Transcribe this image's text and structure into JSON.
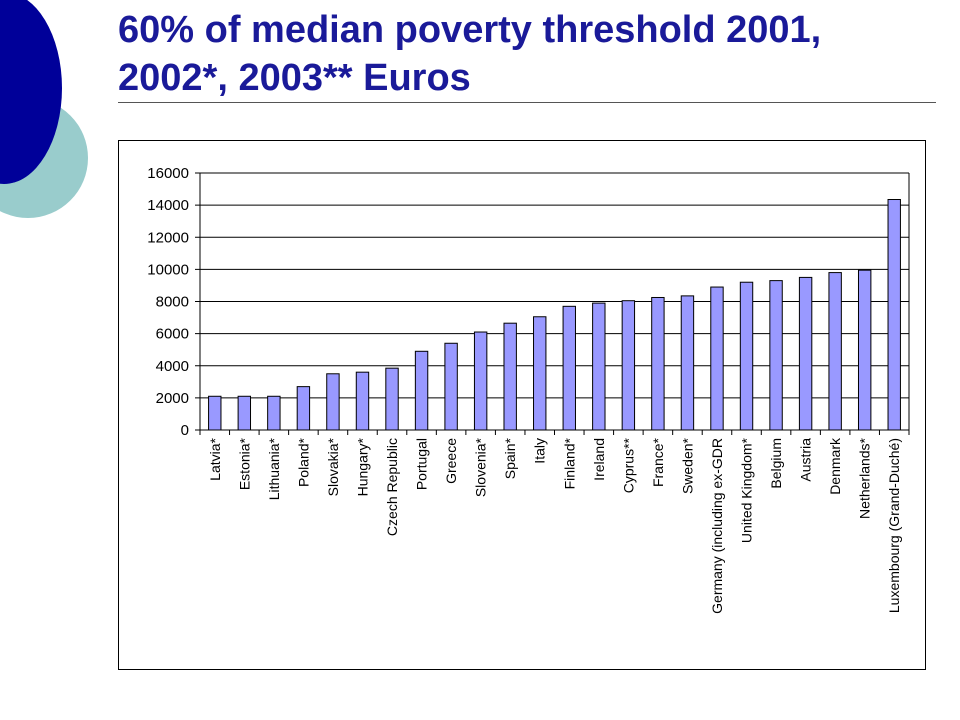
{
  "slide": {
    "title": "60% of median poverty threshold 2001, 2002*, 2003** Euros"
  },
  "colors": {
    "title": "#1a1a99",
    "bar_fill": "#9999ff",
    "deco_dark": "#000099",
    "deco_light": "#99cccc"
  },
  "chart_data": {
    "type": "bar",
    "categories": [
      "Latvia*",
      "Estonia*",
      "Lithuania*",
      "Poland*",
      "Slovakia*",
      "Hungary*",
      "Czech Republic",
      "Portugal",
      "Greece",
      "Slovenia*",
      "Spain*",
      "Italy",
      "Finland*",
      "Ireland",
      "Cyprus**",
      "France*",
      "Sweden*",
      "Germany (including ex-GDR",
      "United Kingdom*",
      "Belgium",
      "Austria",
      "Denmark",
      "Netherlands*",
      "Luxembourg (Grand-Duché)"
    ],
    "values": [
      2100,
      2100,
      2100,
      2700,
      3500,
      3600,
      3850,
      4900,
      5400,
      6100,
      6650,
      7050,
      7700,
      7900,
      8050,
      8250,
      8350,
      8900,
      9200,
      9300,
      9500,
      9800,
      9950,
      14350
    ],
    "ylim": [
      0,
      16000
    ],
    "yticks": [
      0,
      2000,
      4000,
      6000,
      8000,
      10000,
      12000,
      14000,
      16000
    ],
    "ytick_labels": [
      "0",
      "2000",
      "4000",
      "6000",
      "8000",
      "10000",
      "12000",
      "14000",
      "16000"
    ],
    "grid": true,
    "legend": "none"
  }
}
